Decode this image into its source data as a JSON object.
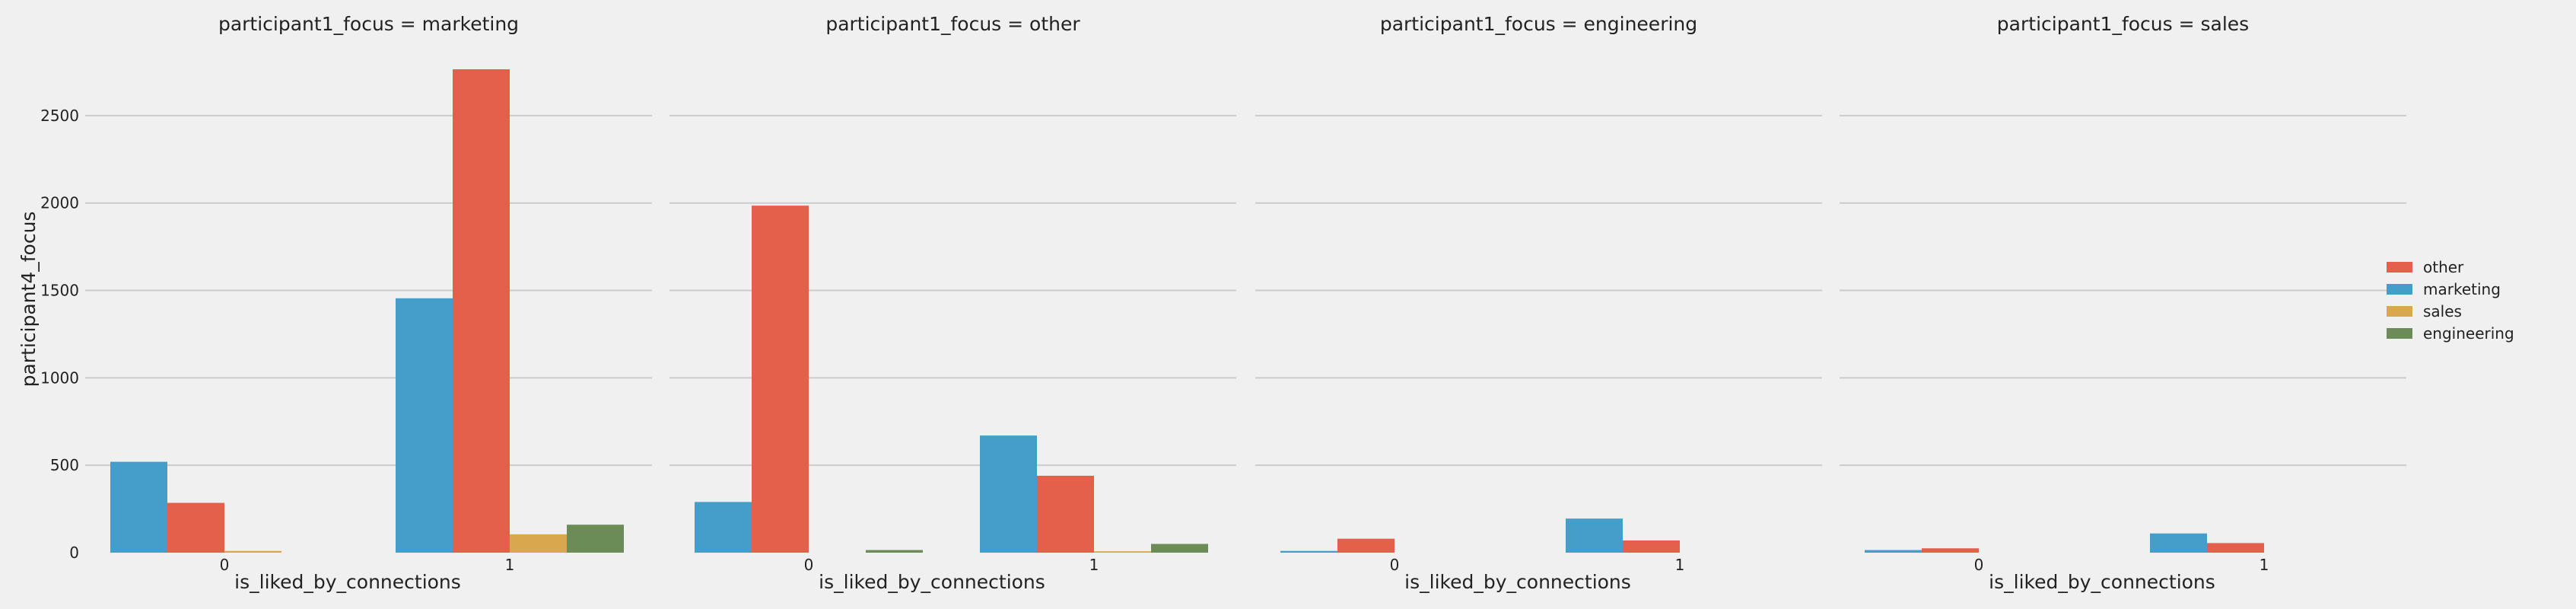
{
  "chart_data": {
    "type": "bar",
    "ylabel": "participant4_focus",
    "xlabel": "is_liked_by_connections",
    "categories": [
      "0",
      "1"
    ],
    "ylim": [
      0,
      2900
    ],
    "yticks": [
      0,
      500,
      1000,
      1500,
      2000,
      2500
    ],
    "grid": true,
    "legend_position": "right",
    "hue_order": [
      "marketing",
      "other",
      "sales",
      "engineering"
    ],
    "legend": [
      "other",
      "marketing",
      "sales",
      "engineering"
    ],
    "colors": {
      "other": "#e5604a",
      "marketing": "#459ec9",
      "sales": "#d9a84e",
      "engineering": "#6b8c57"
    },
    "panels": [
      {
        "title": "participant1_focus = marketing",
        "series": [
          {
            "name": "marketing",
            "values": [
              520,
              1455
            ]
          },
          {
            "name": "other",
            "values": [
              285,
              2765
            ]
          },
          {
            "name": "sales",
            "values": [
              10,
              105
            ]
          },
          {
            "name": "engineering",
            "values": [
              0,
              160
            ]
          }
        ]
      },
      {
        "title": "participant1_focus = other",
        "series": [
          {
            "name": "marketing",
            "values": [
              290,
              670
            ]
          },
          {
            "name": "other",
            "values": [
              1985,
              440
            ]
          },
          {
            "name": "sales",
            "values": [
              0,
              8
            ]
          },
          {
            "name": "engineering",
            "values": [
              15,
              50
            ]
          }
        ]
      },
      {
        "title": "participant1_focus = engineering",
        "series": [
          {
            "name": "marketing",
            "values": [
              10,
              195
            ]
          },
          {
            "name": "other",
            "values": [
              80,
              70
            ]
          },
          {
            "name": "sales",
            "values": [
              0,
              0
            ]
          },
          {
            "name": "engineering",
            "values": [
              0,
              0
            ]
          }
        ]
      },
      {
        "title": "participant1_focus = sales",
        "series": [
          {
            "name": "marketing",
            "values": [
              15,
              110
            ]
          },
          {
            "name": "other",
            "values": [
              25,
              55
            ]
          },
          {
            "name": "sales",
            "values": [
              0,
              0
            ]
          },
          {
            "name": "engineering",
            "values": [
              0,
              0
            ]
          }
        ]
      }
    ]
  }
}
